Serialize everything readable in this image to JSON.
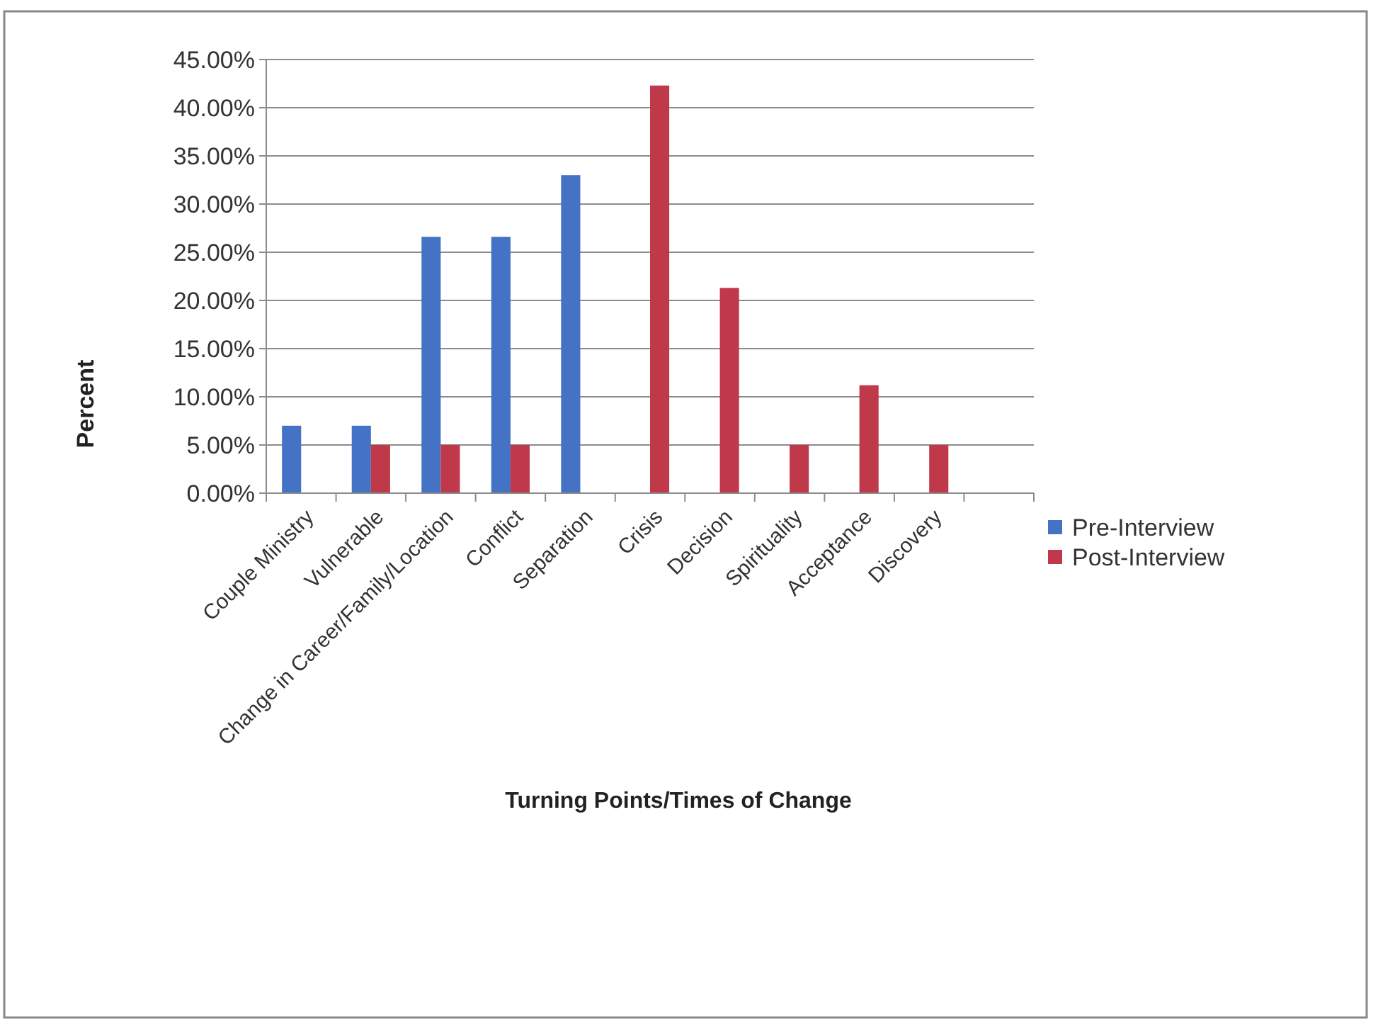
{
  "chart_data": {
    "type": "bar",
    "xlabel": "Turning Points/Times of Change",
    "ylabel": "Percent",
    "categories": [
      "Couple Ministry",
      "Vulnerable",
      "Change in Career/Family/Location",
      "Conflict",
      "Separation",
      "Crisis",
      "Decision",
      "Spirituality",
      "Acceptance",
      "Discovery",
      null
    ],
    "series": [
      {
        "name": "Pre-Interview",
        "color": "#4472c4",
        "values": [
          7,
          7,
          26.6,
          26.6,
          33,
          null,
          null,
          null,
          null,
          null,
          null
        ]
      },
      {
        "name": "Post-Interview",
        "color": "#c0394a",
        "values": [
          null,
          5,
          5,
          5,
          null,
          42.3,
          21.3,
          5,
          11.2,
          5,
          null
        ]
      }
    ],
    "ylim": [
      0,
      45
    ],
    "yticks": [
      {
        "value": 0,
        "label": "0.00%"
      },
      {
        "value": 5,
        "label": "5.00%"
      },
      {
        "value": 10,
        "label": "10.00%"
      },
      {
        "value": 15,
        "label": "15.00%"
      },
      {
        "value": 20,
        "label": "20.00%"
      },
      {
        "value": 25,
        "label": "25.00%"
      },
      {
        "value": 30,
        "label": "30.00%"
      },
      {
        "value": 35,
        "label": "35.00%"
      },
      {
        "value": 40,
        "label": "40.00%"
      },
      {
        "value": 45,
        "label": "45.00%"
      }
    ],
    "grid": "y",
    "legend": "right"
  }
}
